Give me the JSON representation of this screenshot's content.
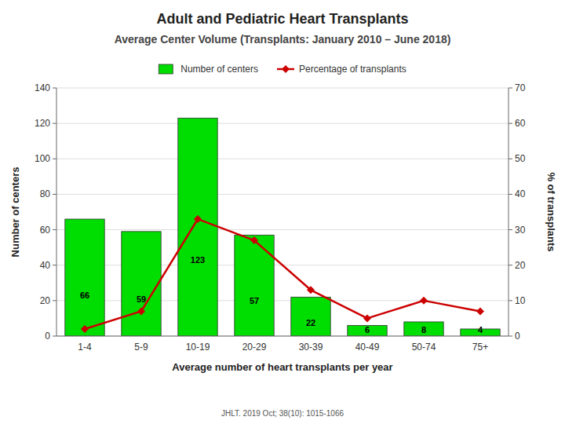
{
  "chart_data": {
    "type": "bar",
    "title": "Adult and Pediatric Heart Transplants",
    "subtitle": "Average Center Volume (Transplants: January 2010 – June 2018)",
    "xlabel": "Average number of heart transplants per year",
    "ylabel": "Number of centers",
    "y2label": "% of transplants",
    "annotations": [
      "JHLT. 2019 Oct; 38(10): 1015-1066"
    ],
    "categories": [
      "1-4",
      "5-9",
      "10-19",
      "20-29",
      "30-39",
      "40-49",
      "50-74",
      "75+"
    ],
    "series": [
      {
        "name": "Number of centers",
        "type": "bar",
        "color": "#00dd00",
        "data_labels": true,
        "values": [
          66,
          59,
          123,
          57,
          22,
          6,
          8,
          4
        ]
      },
      {
        "name": "Percentage of transplants",
        "type": "line",
        "color": "#cc0000",
        "marker": "diamond",
        "axis": "y2",
        "values": [
          2,
          7,
          33,
          27,
          13,
          5,
          10,
          7
        ]
      }
    ],
    "ylim": [
      0,
      140
    ],
    "yticks": [
      0,
      20,
      40,
      60,
      80,
      100,
      120,
      140
    ],
    "y2lim": [
      0,
      70
    ],
    "y2ticks": [
      0,
      10,
      20,
      30,
      40,
      50,
      60,
      70
    ],
    "grid": true,
    "legend": "top"
  }
}
